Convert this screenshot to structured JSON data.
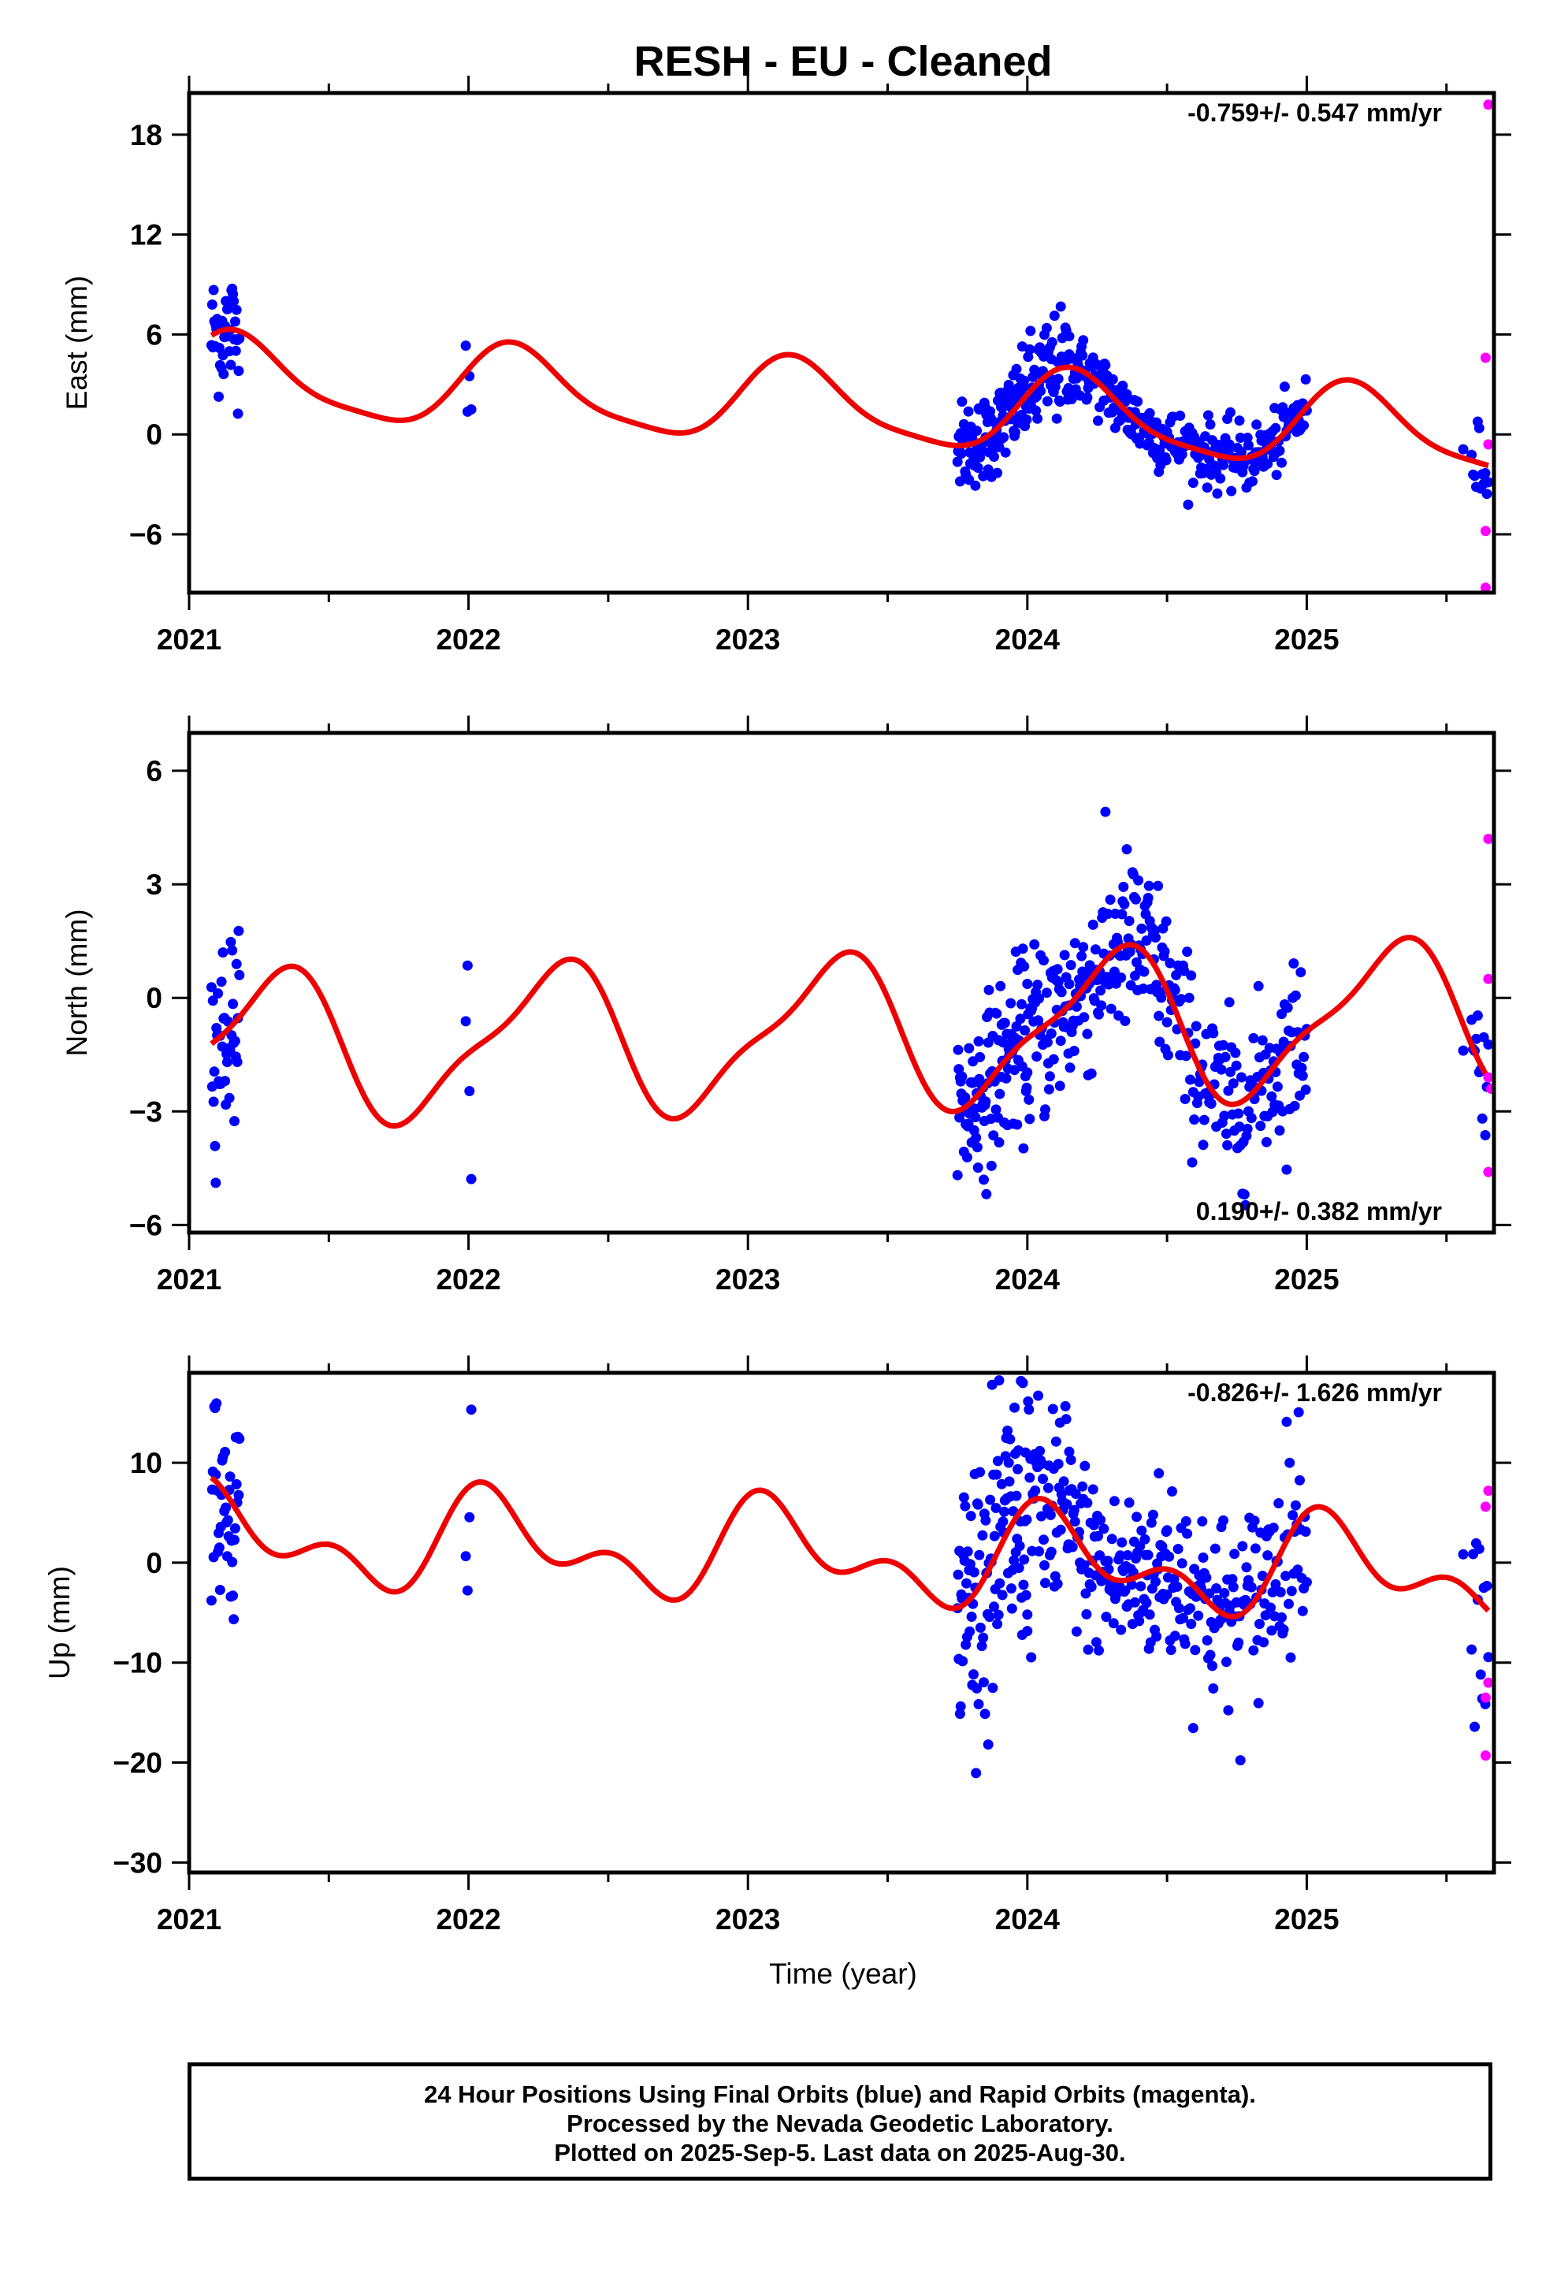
{
  "title": "RESH  - EU - Cleaned",
  "xlabel": "Time (year)",
  "footer": [
    "24 Hour Positions Using Final Orbits (blue) and Rapid Orbits (magenta).",
    "Processed by the Nevada Geodetic Laboratory.",
    "Plotted on 2025-Sep-5. Last data on 2025-Aug-30."
  ],
  "colors": {
    "final_orbits": "#0000ff",
    "rapid_orbits": "#ff00ff",
    "model_fit": "#ee0000",
    "frame": "#000000"
  },
  "chart_data": [
    {
      "type": "scatter",
      "ylabel": "East (mm)",
      "xlim": [
        2021.0,
        2025.67
      ],
      "ylim": [
        -9.5,
        20.5
      ],
      "xticks": [
        2021,
        2022,
        2023,
        2024,
        2025
      ],
      "yticks": [
        -6,
        0,
        6,
        12,
        18
      ],
      "annotation": "-0.759+/- 0.547 mm/yr",
      "annotation_position": "top-right",
      "fit": {
        "offset": 2.0,
        "trend": -0.759,
        "amp1": 2.4,
        "phase1": 0.08,
        "amp2": 0.55,
        "phase2": 0.0
      },
      "blue_segments": [
        {
          "x0": 2021.08,
          "x1": 2021.18,
          "n": 40,
          "model": 0,
          "noise": 1.9
        },
        {
          "x0": 2021.99,
          "x1": 2022.01,
          "n": 4,
          "model": 0,
          "noise": 1.4
        },
        {
          "x0": 2023.75,
          "x1": 2024.0,
          "n": 110,
          "model": 1,
          "noise": 1.3
        },
        {
          "x0": 2024.0,
          "x1": 2024.15,
          "n": 55,
          "model": 1,
          "noise": 1.7
        },
        {
          "x0": 2024.15,
          "x1": 2024.5,
          "n": 120,
          "model": 1,
          "noise": 1.0
        },
        {
          "x0": 2024.5,
          "x1": 2025.0,
          "n": 140,
          "model": 1,
          "noise": 1.0
        },
        {
          "x0": 2025.55,
          "x1": 2025.57,
          "n": 1,
          "model": 1,
          "noise": 0.6
        },
        {
          "x0": 2025.59,
          "x1": 2025.65,
          "n": 12,
          "model": 1,
          "noise": 1.2
        }
      ],
      "magenta": [
        [
          2025.65,
          19.8
        ],
        [
          2025.64,
          4.6
        ],
        [
          2025.65,
          -0.6
        ],
        [
          2025.64,
          -5.8
        ],
        [
          2025.64,
          -9.2
        ]
      ]
    },
    {
      "type": "scatter",
      "ylabel": "North (mm)",
      "xlim": [
        2021.0,
        2025.67
      ],
      "ylim": [
        -6.2,
        7.0
      ],
      "xticks": [
        2021,
        2022,
        2023,
        2024,
        2025
      ],
      "yticks": [
        -6,
        -3,
        0,
        3,
        6
      ],
      "annotation": "0.190+/- 0.382 mm/yr",
      "annotation_position": "bottom-right",
      "fit": {
        "offset": -1.0,
        "trend": 0.19,
        "amp1": 1.9,
        "phase1": -0.05,
        "amp2": 0.55,
        "phase2": 0.2
      },
      "blue_segments": [
        {
          "x0": 2021.08,
          "x1": 2021.18,
          "n": 40,
          "model": 0,
          "noise": 1.3
        },
        {
          "x0": 2021.99,
          "x1": 2022.01,
          "n": 4,
          "model": 0,
          "noise": 1.0
        },
        {
          "x0": 2023.75,
          "x1": 2024.0,
          "n": 110,
          "model": 1,
          "noise": 1.1
        },
        {
          "x0": 2024.0,
          "x1": 2024.15,
          "n": 55,
          "model": 1,
          "noise": 1.2
        },
        {
          "x0": 2024.15,
          "x1": 2024.5,
          "n": 120,
          "model": 1,
          "noise": 1.2
        },
        {
          "x0": 2024.5,
          "x1": 2025.0,
          "n": 140,
          "model": 1,
          "noise": 1.1
        },
        {
          "x0": 2025.55,
          "x1": 2025.57,
          "n": 1,
          "model": 1,
          "noise": 0.6
        },
        {
          "x0": 2025.59,
          "x1": 2025.65,
          "n": 12,
          "model": 1,
          "noise": 0.9
        }
      ],
      "magenta": [
        [
          2025.65,
          4.2
        ],
        [
          2025.65,
          0.5
        ],
        [
          2025.65,
          -2.1
        ],
        [
          2025.66,
          -2.4
        ],
        [
          2025.65,
          -4.6
        ]
      ]
    },
    {
      "type": "scatter",
      "ylabel": "Up (mm)",
      "xlim": [
        2021.0,
        2025.67
      ],
      "ylim": [
        -31,
        19
      ],
      "xticks": [
        2021,
        2022,
        2023,
        2024,
        2025
      ],
      "yticks": [
        -30,
        -20,
        -10,
        0,
        10
      ],
      "annotation": "-0.826+/- 1.626 mm/yr",
      "annotation_position": "top-right",
      "fit": {
        "offset": 1.0,
        "trend": -0.826,
        "amp1": 3.8,
        "phase1": 0.15,
        "amp2": 2.8,
        "phase2": 0.1
      },
      "blue_segments": [
        {
          "x0": 2021.08,
          "x1": 2021.18,
          "n": 40,
          "model": 0,
          "noise": 5.5
        },
        {
          "x0": 2021.99,
          "x1": 2022.01,
          "n": 4,
          "model": 0,
          "noise": 5.0
        },
        {
          "x0": 2023.75,
          "x1": 2024.0,
          "n": 110,
          "model": 1,
          "noise": 7.5
        },
        {
          "x0": 2024.0,
          "x1": 2024.15,
          "n": 55,
          "model": 1,
          "noise": 7.0
        },
        {
          "x0": 2024.15,
          "x1": 2024.5,
          "n": 120,
          "model": 1,
          "noise": 4.5
        },
        {
          "x0": 2024.5,
          "x1": 2025.0,
          "n": 140,
          "model": 1,
          "noise": 5.0
        },
        {
          "x0": 2025.55,
          "x1": 2025.57,
          "n": 1,
          "model": 1,
          "noise": 3.0
        },
        {
          "x0": 2025.59,
          "x1": 2025.65,
          "n": 12,
          "model": 1,
          "noise": 5.0
        }
      ],
      "magenta": [
        [
          2025.65,
          7.2
        ],
        [
          2025.64,
          5.6
        ],
        [
          2025.65,
          -12.0
        ],
        [
          2025.64,
          -13.5
        ],
        [
          2025.64,
          -19.3
        ]
      ]
    }
  ]
}
